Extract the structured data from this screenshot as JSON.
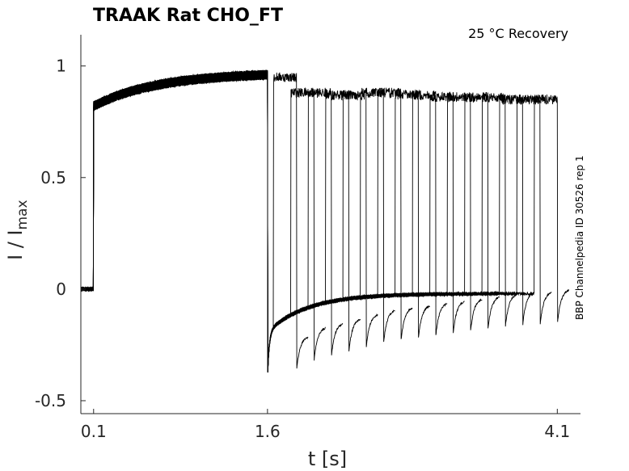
{
  "chart_data": {
    "type": "line",
    "title": "TRAAK  Rat  CHO_FT",
    "annotation": "25 °C  Recovery",
    "side_label": "BBP Channelpedia ID 30526 rep 1",
    "xlabel": "t [s]",
    "ylabel": "I / I",
    "ylabel_sub": "max",
    "xlim": [
      -0.01,
      4.3
    ],
    "ylim": [
      -0.558,
      1.14
    ],
    "xticks": [
      0.1,
      1.6,
      4.1
    ],
    "xtick_labels": [
      "0.1",
      "1.6",
      "4.1"
    ],
    "yticks": [
      1,
      0.5,
      0,
      -0.5
    ],
    "ytick_labels": [
      "1",
      "0.5",
      "0",
      "-0.5"
    ],
    "grid": false,
    "protocol": {
      "first_pulse_start": 0.1,
      "first_pulse_end": 1.6,
      "first_pulse_initial": 0.82,
      "first_pulse_final": 0.97,
      "tail_min_after_first": -0.4,
      "n_sweeps": 16,
      "recovery_intervals": [
        0.05,
        0.2,
        0.35,
        0.5,
        0.65,
        0.8,
        0.95,
        1.1,
        1.25,
        1.4,
        1.55,
        1.7,
        1.85,
        2.0,
        2.15,
        2.3
      ],
      "second_pulse_duration": 0.2,
      "second_pulse_amplitude": [
        0.95,
        0.88,
        0.88,
        0.87,
        0.87,
        0.88,
        0.88,
        0.87,
        0.87,
        0.86,
        0.86,
        0.86,
        0.86,
        0.85,
        0.85,
        0.85
      ],
      "second_tail_min": [
        -0.37,
        -0.33,
        -0.31,
        -0.29,
        -0.27,
        -0.25,
        -0.24,
        -0.23,
        -0.22,
        -0.21,
        -0.2,
        -0.19,
        -0.18,
        -0.17,
        -0.17,
        -0.16
      ]
    },
    "line_color": "#000000"
  }
}
